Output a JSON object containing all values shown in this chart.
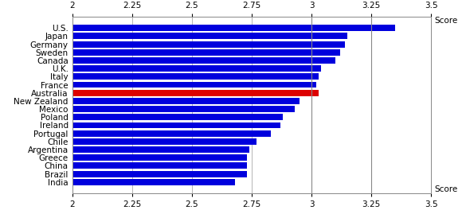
{
  "countries": [
    "U.S.",
    "Japan",
    "Germany",
    "Sweden",
    "Canada",
    "U.K.",
    "Italy",
    "France",
    "Australia",
    "New Zealand",
    "Mexico",
    "Poland",
    "Ireland",
    "Portugal",
    "Chile",
    "Argentina",
    "Greece",
    "China",
    "Brazil",
    "India"
  ],
  "values": [
    3.35,
    3.15,
    3.14,
    3.12,
    3.1,
    3.04,
    3.03,
    3.02,
    3.03,
    2.95,
    2.93,
    2.88,
    2.87,
    2.83,
    2.77,
    2.74,
    2.73,
    2.73,
    2.73,
    2.68
  ],
  "bar_colors": [
    "blue",
    "blue",
    "blue",
    "blue",
    "blue",
    "blue",
    "blue",
    "blue",
    "red",
    "blue",
    "blue",
    "blue",
    "blue",
    "blue",
    "blue",
    "blue",
    "blue",
    "blue",
    "blue",
    "blue"
  ],
  "xlim": [
    2,
    3.5
  ],
  "xticks": [
    2,
    2.25,
    2.5,
    2.75,
    3,
    3.25,
    3.5
  ],
  "score_label": "Score",
  "bar_blue": "#0000dd",
  "bar_red": "#dd0000",
  "background": "#ffffff",
  "grid_color": "#999999",
  "vline_color": "#888888",
  "label_fontsize": 7.5,
  "tick_fontsize": 7.5
}
